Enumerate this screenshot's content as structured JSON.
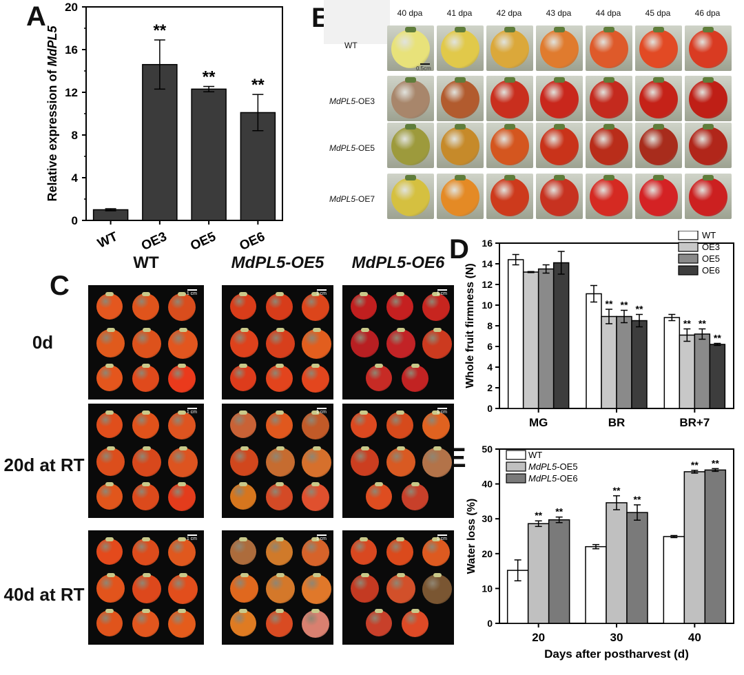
{
  "panels": {
    "a": "A",
    "b": "B",
    "c": "C",
    "d": "D",
    "e": "E"
  },
  "panelA": {
    "ylabel_prefix": "Relative expression of ",
    "ylabel_gene": "MdPL5",
    "yticks": [
      "0",
      "4",
      "8",
      "12",
      "16",
      "20"
    ],
    "sig": "**"
  },
  "panelB": {
    "columns": [
      "40 dpa",
      "41 dpa",
      "42 dpa",
      "43 dpa",
      "44 dpa",
      "45 dpa",
      "46 dpa"
    ],
    "rows": [
      {
        "label_italic": "",
        "label_plain": "WT"
      },
      {
        "label_italic": "MdPL5",
        "label_plain": "-OE3"
      },
      {
        "label_italic": "MdPL5",
        "label_plain": "-OE5"
      },
      {
        "label_italic": "MdPL5",
        "label_plain": "-OE7"
      }
    ],
    "scale": "0.5cm",
    "colors": [
      [
        "#e8e27a",
        "#e1c94a",
        "#dba83a",
        "#e07b2e",
        "#de5a2a",
        "#e24a24",
        "#d93b22"
      ],
      [
        "#a8866b",
        "#b25b2e",
        "#c92f1e",
        "#c9271c",
        "#c42a1e",
        "#c52218",
        "#bf1f16"
      ],
      [
        "#9d9a3c",
        "#c68a2a",
        "#d4561f",
        "#c9331a",
        "#b92d1a",
        "#a82c1c",
        "#b1261a"
      ],
      [
        "#d5c040",
        "#e48a25",
        "#cd3a1c",
        "#c73220",
        "#d52a22",
        "#d42224",
        "#cc2020"
      ]
    ]
  },
  "panelC": {
    "col_labels": [
      {
        "italic": "",
        "plain": "WT"
      },
      {
        "italic": "MdPL5",
        "plain": "-OE5"
      },
      {
        "italic": "MdPL5",
        "plain": "-OE6"
      }
    ],
    "row_labels": [
      "0d",
      "20d at RT",
      "40d at RT"
    ],
    "scale": "1 cm"
  },
  "chart_data": [
    {
      "type": "bar",
      "panel": "A",
      "categories": [
        "WT",
        "OE3",
        "OE5",
        "OE6"
      ],
      "values": [
        1.0,
        14.6,
        12.3,
        10.1
      ],
      "errors": [
        0.1,
        2.3,
        0.25,
        1.7
      ],
      "significance": [
        "",
        "**",
        "**",
        "**"
      ],
      "ylabel": "Relative expression of MdPL5",
      "ylim": [
        0,
        20
      ],
      "color": "#3b3b3b"
    },
    {
      "type": "bar",
      "panel": "D",
      "categories": [
        "MG",
        "BR",
        "BR+7"
      ],
      "series": [
        {
          "name": "WT",
          "values": [
            14.4,
            11.1,
            8.8
          ],
          "errors": [
            0.5,
            0.8,
            0.3
          ],
          "sig": [
            "",
            "",
            ""
          ],
          "color": "#ffffff"
        },
        {
          "name": "OE3",
          "values": [
            13.2,
            8.9,
            7.1
          ],
          "errors": [
            0.05,
            0.7,
            0.6
          ],
          "sig": [
            "",
            "**",
            "**"
          ],
          "color": "#c8c8c8"
        },
        {
          "name": "OE5",
          "values": [
            13.5,
            8.9,
            7.2
          ],
          "errors": [
            0.4,
            0.6,
            0.5
          ],
          "sig": [
            "",
            "**",
            "**"
          ],
          "color": "#8a8a8a"
        },
        {
          "name": "OE6",
          "values": [
            14.1,
            8.5,
            6.2
          ],
          "errors": [
            1.1,
            0.6,
            0.1
          ],
          "sig": [
            "",
            "**",
            "**"
          ],
          "color": "#3d3d3d"
        }
      ],
      "ylabel": "Whole fruit firmness (N)",
      "xlabel": "",
      "ylim": [
        0,
        16
      ],
      "yticks": [
        "0",
        "2",
        "4",
        "6",
        "8",
        "10",
        "12",
        "14",
        "16"
      ],
      "legend": "top-right"
    },
    {
      "type": "bar",
      "panel": "E",
      "categories": [
        "20",
        "30",
        "40"
      ],
      "series": [
        {
          "name_italic": "",
          "name": "WT",
          "values": [
            15.2,
            22.0,
            24.9
          ],
          "errors": [
            3.0,
            0.6,
            0.3
          ],
          "sig": [
            "",
            "",
            ""
          ],
          "color": "#ffffff"
        },
        {
          "name_italic": "MdPL5",
          "name": "-OE5",
          "values": [
            28.6,
            34.6,
            43.5
          ],
          "errors": [
            0.8,
            2.0,
            0.4
          ],
          "sig": [
            "**",
            "**",
            "**"
          ],
          "color": "#c0c0c0"
        },
        {
          "name_italic": "MdPL5",
          "name": "-OE6",
          "values": [
            29.7,
            31.8,
            44.0
          ],
          "errors": [
            0.8,
            2.2,
            0.4
          ],
          "sig": [
            "**",
            "**",
            "**"
          ],
          "color": "#7a7a7a"
        }
      ],
      "ylabel": "Water loss (%)",
      "xlabel": "Days after postharvest (d)",
      "ylim": [
        0,
        50
      ],
      "yticks": [
        "0",
        "10",
        "20",
        "30",
        "40",
        "50"
      ],
      "legend": "top-left"
    }
  ]
}
